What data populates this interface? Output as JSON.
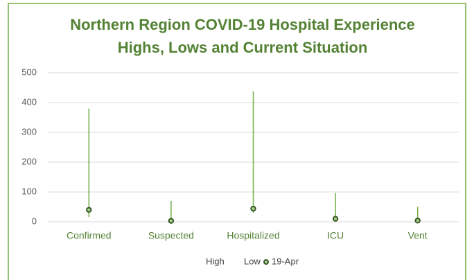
{
  "chart_data": {
    "type": "high-low",
    "title": "Northern Region COVID-19 Hospital Experience",
    "subtitle": "Highs, Lows and Current Situation",
    "categories": [
      "Confirmed",
      "Suspected",
      "Hospitalized",
      "ICU",
      "Vent"
    ],
    "series": [
      {
        "name": "High",
        "color": "#70ad47",
        "values": [
          380,
          70,
          438,
          97,
          50
        ]
      },
      {
        "name": "Low",
        "color": "#70ad47",
        "values": [
          16,
          0,
          30,
          5,
          0
        ]
      },
      {
        "name": "19-Apr",
        "color": "#375623",
        "values": [
          40,
          3,
          44,
          10,
          4
        ]
      }
    ],
    "ylim": [
      0,
      500
    ],
    "yticks": [
      0,
      100,
      200,
      300,
      400,
      500
    ],
    "grid": true,
    "legend": "bottom"
  }
}
